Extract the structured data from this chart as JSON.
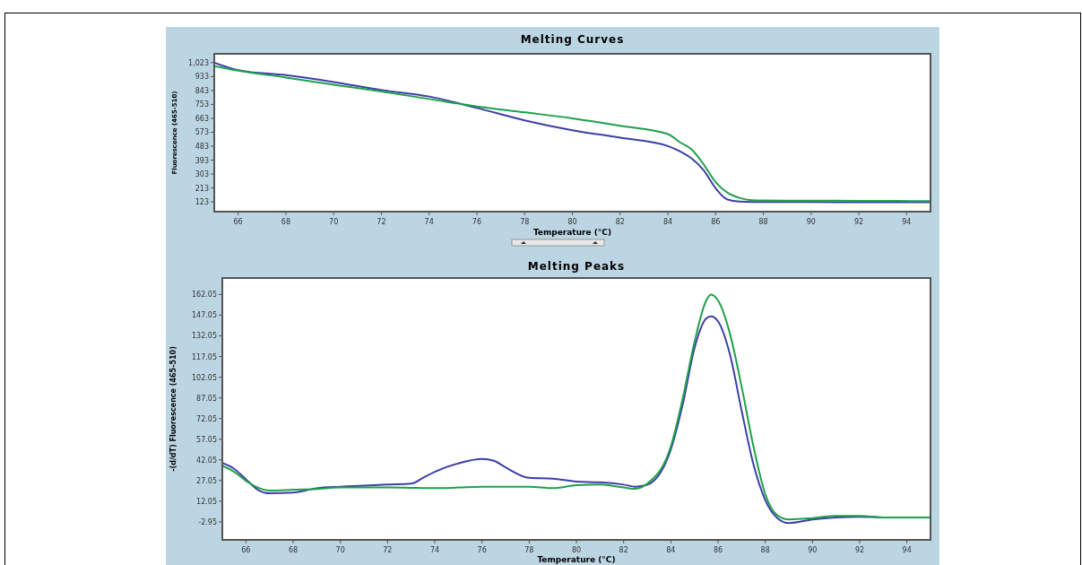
{
  "chart_data": [
    {
      "type": "line",
      "title": "Melting Curves",
      "xlabel": "Temperature (°C)",
      "ylabel": "Fluorescence (465-510)",
      "xlim": [
        65,
        95
      ],
      "xticks": [
        66,
        68,
        70,
        72,
        74,
        76,
        78,
        80,
        82,
        84,
        86,
        88,
        90,
        92,
        94
      ],
      "ylim": [
        60,
        1080
      ],
      "yticks": [
        {
          "value": 1023,
          "label": "1,023"
        },
        933,
        843,
        753,
        663,
        573,
        483,
        393,
        303,
        213,
        123
      ],
      "grid": false,
      "marker": "none",
      "line_style": "solid",
      "x": [
        65,
        66,
        68,
        70,
        72,
        74,
        76,
        78,
        80,
        82,
        84,
        84.5,
        85,
        85.5,
        86,
        86.5,
        87,
        87.5,
        88,
        90,
        92,
        95
      ],
      "series": [
        {
          "color": "#3b3fa8",
          "values": [
            1023,
            975,
            942,
            898,
            846,
            804,
            730,
            650,
            586,
            538,
            484,
            450,
            403,
            327,
            211,
            138,
            125,
            123,
            123,
            122,
            121,
            121
          ]
        },
        {
          "color": "#1fa04a",
          "values": [
            1000,
            971,
            927,
            880,
            836,
            788,
            740,
            702,
            663,
            615,
            561,
            509,
            461,
            365,
            250,
            182,
            149,
            134,
            132,
            131,
            130,
            128
          ]
        }
      ]
    },
    {
      "type": "line",
      "title": "Melting Peaks",
      "xlabel": "Temperature (°C)",
      "ylabel": "-(d/dT) Fluorescence (465-510)",
      "xlim": [
        65,
        95
      ],
      "xticks": [
        66,
        68,
        70,
        72,
        74,
        76,
        78,
        80,
        82,
        84,
        86,
        88,
        90,
        92,
        94
      ],
      "ylim": [
        -16,
        174
      ],
      "yticks": [
        162.05,
        147.05,
        132.05,
        117.05,
        102.05,
        87.05,
        72.05,
        57.05,
        42.05,
        27.05,
        12.05,
        -2.95
      ],
      "grid": false,
      "marker": "none",
      "line_style": "solid",
      "x": [
        65,
        65.5,
        66,
        66.5,
        67,
        68,
        69,
        70,
        72,
        73,
        73.5,
        74,
        75,
        76,
        76.5,
        77,
        78,
        79,
        80,
        81,
        82,
        82.5,
        83,
        84,
        84.5,
        85,
        85.5,
        85.7,
        86,
        86.5,
        87,
        87.5,
        88,
        88.5,
        89,
        90,
        91,
        92,
        93,
        95
      ],
      "series": [
        {
          "color": "#3b3fa8",
          "values": [
            39.9,
            35.6,
            28,
            20.4,
            17.8,
            18.3,
            21.5,
            22.6,
            24.1,
            24.8,
            29,
            33.4,
            39.5,
            42.7,
            41.4,
            36.6,
            29,
            28.4,
            26.3,
            25.8,
            24.1,
            22.6,
            24,
            49.6,
            82,
            123,
            144.7,
            146.2,
            142.6,
            118.8,
            77.7,
            38.8,
            12.9,
            0,
            -3.8,
            -1.2,
            0.3,
            0.8,
            0.3,
            0.3
          ]
        },
        {
          "color": "#1fa04a",
          "values": [
            37.7,
            33.4,
            26.9,
            22,
            19.8,
            20.4,
            21,
            22,
            22,
            21.8,
            21.6,
            21.5,
            22,
            22.6,
            22.6,
            22.6,
            22.6,
            21.5,
            23.7,
            24.1,
            22,
            21.1,
            24.8,
            51.8,
            86.4,
            127.4,
            157.7,
            162,
            157.7,
            133.9,
            95,
            51.8,
            17.2,
            2,
            -1.2,
            -0.2,
            1.4,
            1.4,
            0.3,
            0.3
          ]
        }
      ]
    }
  ]
}
